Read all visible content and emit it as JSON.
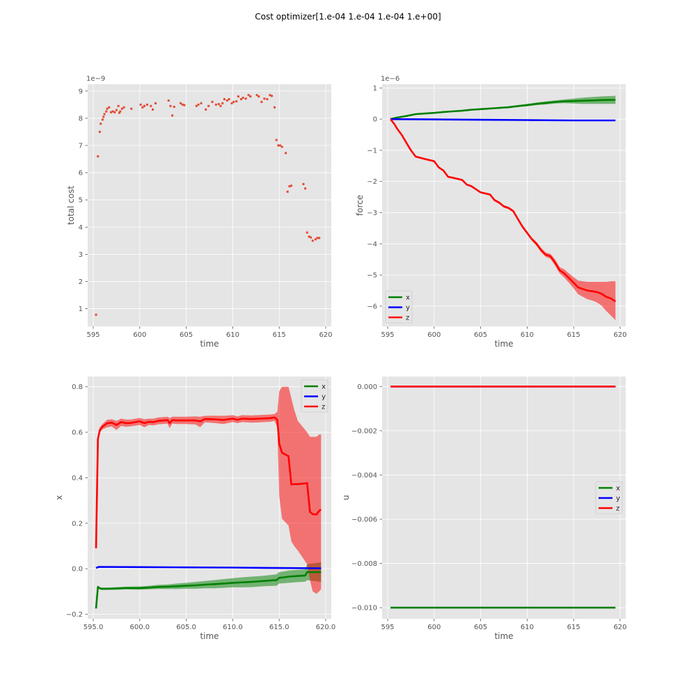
{
  "figure": {
    "title": "Cost optimizer[1.e-04 1.e-04 1.e-04 1.e+00]"
  },
  "colors": {
    "x": "#008000",
    "y": "#0000ff",
    "z": "#ff0000",
    "scatter": "#e24a33",
    "panel_bg": "#e5e5e5",
    "grid": "#ffffff"
  },
  "chart_data": [
    {
      "id": "cost",
      "type": "scatter",
      "xlabel": "time",
      "ylabel": "total cost",
      "offset_text": "1e−9",
      "xlim": [
        594.4,
        620.6
      ],
      "ylim": [
        0.35,
        9.25
      ],
      "xticks": [
        595,
        600,
        605,
        610,
        615,
        620
      ],
      "yticks": [
        1,
        2,
        3,
        4,
        5,
        6,
        7,
        8,
        9
      ],
      "grid": true,
      "x": [
        595.3,
        595.5,
        595.7,
        595.8,
        596.0,
        596.1,
        596.2,
        596.4,
        596.5,
        596.7,
        596.9,
        597.1,
        597.3,
        597.5,
        597.7,
        597.8,
        597.9,
        598.1,
        598.3,
        599.1,
        600.1,
        600.3,
        600.5,
        600.8,
        601.2,
        601.4,
        601.7,
        603.1,
        603.3,
        603.5,
        603.7,
        604.4,
        604.6,
        604.8,
        606.1,
        606.3,
        606.6,
        607.1,
        607.4,
        607.8,
        608.2,
        608.5,
        608.7,
        608.9,
        609.1,
        609.4,
        609.6,
        609.9,
        610.1,
        610.4,
        610.6,
        610.9,
        611.1,
        611.4,
        611.7,
        611.9,
        612.6,
        612.8,
        613.1,
        613.4,
        613.7,
        614.0,
        614.2,
        614.5,
        614.7,
        614.9,
        615.1,
        615.3,
        615.7,
        615.9,
        616.1,
        616.3,
        617.6,
        617.8,
        618.0,
        618.2,
        618.4,
        618.6,
        618.9,
        619.1,
        619.3
      ],
      "y": [
        0.78,
        6.6,
        7.5,
        7.8,
        7.95,
        8.05,
        8.15,
        8.25,
        8.35,
        8.4,
        8.22,
        8.25,
        8.22,
        8.3,
        8.45,
        8.2,
        8.25,
        8.35,
        8.4,
        8.35,
        8.5,
        8.4,
        8.45,
        8.5,
        8.45,
        8.32,
        8.55,
        8.65,
        8.45,
        8.1,
        8.42,
        8.55,
        8.5,
        8.48,
        8.45,
        8.5,
        8.55,
        8.32,
        8.45,
        8.6,
        8.5,
        8.52,
        8.45,
        8.55,
        8.7,
        8.65,
        8.7,
        8.55,
        8.6,
        8.62,
        8.8,
        8.7,
        8.75,
        8.72,
        8.85,
        8.8,
        8.85,
        8.8,
        8.6,
        8.72,
        8.7,
        8.85,
        8.82,
        8.4,
        7.2,
        7.0,
        7.0,
        6.95,
        6.72,
        5.3,
        5.5,
        5.52,
        5.58,
        5.42,
        3.8,
        3.65,
        3.62,
        3.5,
        3.55,
        3.6,
        3.6
      ]
    },
    {
      "id": "force",
      "type": "line",
      "xlabel": "time",
      "ylabel": "force",
      "offset_text": "1e−6",
      "xlim": [
        594.4,
        620.6
      ],
      "ylim": [
        -6.65,
        1.12
      ],
      "xticks": [
        595,
        600,
        605,
        610,
        615,
        620
      ],
      "yticks": [
        1,
        0,
        -1,
        -2,
        -3,
        -4,
        -5,
        -6
      ],
      "grid": true,
      "legend": "lower-left",
      "series": [
        {
          "name": "x",
          "color": "#008000",
          "x": [
            595.3,
            596,
            597,
            598,
            599,
            600,
            601,
            602,
            603,
            604,
            605,
            606,
            607,
            608,
            609,
            610,
            611,
            612,
            613,
            614,
            615,
            616,
            617,
            618,
            619.5
          ],
          "y": [
            0,
            0.05,
            0.1,
            0.16,
            0.18,
            0.2,
            0.23,
            0.25,
            0.27,
            0.3,
            0.32,
            0.34,
            0.36,
            0.38,
            0.42,
            0.45,
            0.49,
            0.52,
            0.55,
            0.57,
            0.58,
            0.59,
            0.6,
            0.61,
            0.62
          ],
          "upper": [
            0,
            0.06,
            0.11,
            0.17,
            0.19,
            0.21,
            0.24,
            0.27,
            0.29,
            0.32,
            0.34,
            0.36,
            0.39,
            0.41,
            0.45,
            0.49,
            0.53,
            0.57,
            0.6,
            0.63,
            0.66,
            0.69,
            0.71,
            0.73,
            0.75
          ],
          "lower": [
            0,
            0.04,
            0.09,
            0.15,
            0.17,
            0.19,
            0.22,
            0.23,
            0.25,
            0.28,
            0.3,
            0.32,
            0.33,
            0.35,
            0.39,
            0.41,
            0.45,
            0.47,
            0.5,
            0.51,
            0.5,
            0.49,
            0.49,
            0.49,
            0.49
          ]
        },
        {
          "name": "y",
          "color": "#0000ff",
          "x": [
            595.3,
            600,
            605,
            610,
            615,
            619.5
          ],
          "y": [
            0,
            -0.01,
            -0.02,
            -0.03,
            -0.04,
            -0.04
          ],
          "upper": [
            0,
            -0.005,
            -0.012,
            -0.02,
            -0.028,
            -0.03
          ],
          "lower": [
            0,
            -0.015,
            -0.028,
            -0.04,
            -0.052,
            -0.05
          ]
        },
        {
          "name": "z",
          "color": "#ff0000",
          "x": [
            595.3,
            595.7,
            596,
            596.5,
            597,
            597.5,
            598,
            599,
            600,
            600.5,
            601,
            601.5,
            602,
            603,
            603.5,
            604,
            605,
            606,
            606.5,
            607,
            607.5,
            608,
            608.5,
            609,
            609.5,
            610,
            610.5,
            611,
            611.5,
            612,
            612.5,
            613,
            613.5,
            614,
            614.5,
            615,
            615.5,
            616,
            616.5,
            617,
            617.5,
            618,
            618.5,
            619,
            619.5
          ],
          "y": [
            0,
            -0.15,
            -0.3,
            -0.5,
            -0.75,
            -1.0,
            -1.2,
            -1.28,
            -1.35,
            -1.55,
            -1.65,
            -1.85,
            -1.88,
            -1.95,
            -2.1,
            -2.15,
            -2.35,
            -2.42,
            -2.6,
            -2.68,
            -2.8,
            -2.85,
            -2.95,
            -3.2,
            -3.45,
            -3.65,
            -3.85,
            -4.0,
            -4.2,
            -4.35,
            -4.4,
            -4.6,
            -4.85,
            -4.95,
            -5.1,
            -5.25,
            -5.4,
            -5.45,
            -5.5,
            -5.52,
            -5.55,
            -5.6,
            -5.7,
            -5.75,
            -5.85
          ],
          "upper": [
            0,
            -0.13,
            -0.27,
            -0.47,
            -0.72,
            -0.97,
            -1.17,
            -1.25,
            -1.32,
            -1.52,
            -1.62,
            -1.82,
            -1.85,
            -1.92,
            -2.07,
            -2.12,
            -2.32,
            -2.39,
            -2.56,
            -2.64,
            -2.76,
            -2.81,
            -2.91,
            -3.15,
            -3.4,
            -3.6,
            -3.8,
            -3.94,
            -4.13,
            -4.28,
            -4.32,
            -4.5,
            -4.75,
            -4.82,
            -4.95,
            -5.07,
            -5.18,
            -5.2,
            -5.22,
            -5.22,
            -5.22,
            -5.22,
            -5.22,
            -5.2,
            -5.2
          ],
          "lower": [
            0,
            -0.17,
            -0.33,
            -0.53,
            -0.78,
            -1.03,
            -1.23,
            -1.31,
            -1.38,
            -1.58,
            -1.68,
            -1.88,
            -1.91,
            -1.98,
            -2.13,
            -2.18,
            -2.38,
            -2.45,
            -2.64,
            -2.72,
            -2.84,
            -2.89,
            -2.99,
            -3.25,
            -3.5,
            -3.7,
            -3.9,
            -4.06,
            -4.27,
            -4.42,
            -4.48,
            -4.7,
            -4.95,
            -5.08,
            -5.25,
            -5.43,
            -5.62,
            -5.7,
            -5.78,
            -5.82,
            -5.88,
            -5.98,
            -6.15,
            -6.3,
            -6.45
          ]
        }
      ]
    },
    {
      "id": "state",
      "type": "line",
      "xlabel": "time",
      "ylabel": "x",
      "xlim": [
        594.4,
        620.6
      ],
      "ylim": [
        -0.22,
        0.845
      ],
      "xticks": [
        595,
        600,
        605,
        610,
        615,
        620
      ],
      "yticks": [
        0.8,
        0.6,
        0.4,
        0.2,
        0.0,
        -0.2
      ],
      "grid": true,
      "legend": "upper-right",
      "series": [
        {
          "name": "x",
          "color": "#008000",
          "x": [
            595.3,
            595.5,
            595.8,
            596.5,
            597.5,
            598.5,
            600,
            601,
            602,
            603,
            604,
            605,
            606,
            607,
            608,
            609,
            610,
            611,
            612,
            613,
            614,
            614.7,
            615,
            615.5,
            616,
            617,
            617.8,
            618,
            619,
            619.5
          ],
          "y": [
            -0.175,
            -0.08,
            -0.088,
            -0.088,
            -0.087,
            -0.085,
            -0.085,
            -0.083,
            -0.08,
            -0.079,
            -0.077,
            -0.075,
            -0.073,
            -0.07,
            -0.068,
            -0.065,
            -0.062,
            -0.06,
            -0.058,
            -0.055,
            -0.052,
            -0.05,
            -0.04,
            -0.038,
            -0.035,
            -0.032,
            -0.03,
            -0.015,
            -0.015,
            -0.015
          ],
          "upper": [
            -0.175,
            -0.075,
            -0.083,
            -0.083,
            -0.081,
            -0.079,
            -0.078,
            -0.075,
            -0.071,
            -0.069,
            -0.065,
            -0.062,
            -0.058,
            -0.054,
            -0.05,
            -0.046,
            -0.042,
            -0.038,
            -0.035,
            -0.032,
            -0.028,
            -0.025,
            -0.015,
            -0.012,
            -0.008,
            -0.005,
            -0.003,
            0.02,
            0.025,
            0.028
          ],
          "lower": [
            -0.175,
            -0.085,
            -0.093,
            -0.093,
            -0.093,
            -0.091,
            -0.092,
            -0.091,
            -0.089,
            -0.089,
            -0.089,
            -0.088,
            -0.088,
            -0.086,
            -0.086,
            -0.084,
            -0.082,
            -0.082,
            -0.081,
            -0.078,
            -0.076,
            -0.075,
            -0.065,
            -0.064,
            -0.062,
            -0.059,
            -0.057,
            -0.05,
            -0.055,
            -0.058
          ]
        },
        {
          "name": "y",
          "color": "#0000ff",
          "x": [
            595.3,
            595.6,
            600,
            605,
            610,
            615,
            619.5
          ],
          "y": [
            0.003,
            0.008,
            0.007,
            0.006,
            0.005,
            0.003,
            0.002
          ],
          "upper": [
            0.003,
            0.009,
            0.008,
            0.007,
            0.006,
            0.004,
            0.004
          ],
          "lower": [
            0.003,
            0.007,
            0.006,
            0.005,
            0.004,
            0.002,
            0.0
          ]
        },
        {
          "name": "z",
          "color": "#ff0000",
          "x": [
            595.3,
            595.5,
            595.7,
            596.0,
            596.5,
            597.0,
            597.5,
            598.0,
            598.5,
            599.0,
            600.0,
            600.5,
            601.0,
            601.5,
            602.0,
            603.0,
            603.2,
            603.5,
            604.0,
            605.0,
            606.0,
            606.5,
            607.0,
            608.0,
            609.0,
            610.0,
            610.5,
            611.0,
            612.0,
            613.0,
            614.0,
            614.5,
            614.8,
            615.0,
            615.3,
            616.0,
            616.3,
            616.6,
            617.0,
            618.0,
            618.3,
            618.6,
            619.0,
            619.3,
            619.5
          ],
          "y": [
            0.09,
            0.57,
            0.61,
            0.625,
            0.64,
            0.642,
            0.632,
            0.645,
            0.64,
            0.641,
            0.648,
            0.64,
            0.646,
            0.645,
            0.65,
            0.653,
            0.64,
            0.653,
            0.652,
            0.652,
            0.652,
            0.648,
            0.658,
            0.657,
            0.654,
            0.66,
            0.655,
            0.66,
            0.658,
            0.66,
            0.662,
            0.665,
            0.655,
            0.55,
            0.51,
            0.495,
            0.37,
            0.372,
            0.372,
            0.376,
            0.25,
            0.24,
            0.238,
            0.255,
            0.26
          ],
          "upper": [
            0.09,
            0.58,
            0.622,
            0.637,
            0.655,
            0.657,
            0.65,
            0.66,
            0.656,
            0.656,
            0.663,
            0.657,
            0.66,
            0.66,
            0.665,
            0.668,
            0.662,
            0.668,
            0.668,
            0.668,
            0.67,
            0.668,
            0.672,
            0.673,
            0.672,
            0.675,
            0.67,
            0.675,
            0.674,
            0.676,
            0.678,
            0.68,
            0.69,
            0.78,
            0.8,
            0.8,
            0.75,
            0.7,
            0.65,
            0.6,
            0.58,
            0.58,
            0.58,
            0.59,
            0.59
          ],
          "lower": [
            0.09,
            0.56,
            0.598,
            0.613,
            0.622,
            0.625,
            0.61,
            0.628,
            0.624,
            0.626,
            0.632,
            0.622,
            0.632,
            0.63,
            0.635,
            0.638,
            0.618,
            0.638,
            0.636,
            0.636,
            0.634,
            0.622,
            0.644,
            0.641,
            0.636,
            0.645,
            0.64,
            0.645,
            0.642,
            0.644,
            0.646,
            0.65,
            0.62,
            0.32,
            0.22,
            0.19,
            0.12,
            0.1,
            0.08,
            0.02,
            -0.05,
            -0.1,
            -0.11,
            -0.1,
            -0.09
          ]
        }
      ]
    },
    {
      "id": "control",
      "type": "line",
      "xlabel": "time",
      "ylabel": "u",
      "xlim": [
        594.4,
        620.6
      ],
      "ylim": [
        -0.0105,
        0.00045
      ],
      "xticks": [
        595,
        600,
        605,
        610,
        615,
        620
      ],
      "yticks": [
        0.0,
        -0.002,
        -0.004,
        -0.006,
        -0.008,
        -0.01
      ],
      "ytick_labels": [
        "0.000",
        "−0.002",
        "−0.004",
        "−0.006",
        "−0.008",
        "−0.010"
      ],
      "grid": true,
      "legend": "center-right",
      "series": [
        {
          "name": "x",
          "color": "#008000",
          "x": [
            595.3,
            619.5
          ],
          "y": [
            -0.01,
            -0.01
          ]
        },
        {
          "name": "y",
          "color": "#0000ff",
          "x": [
            595.3,
            619.5
          ],
          "y": [
            0.0,
            0.0
          ]
        },
        {
          "name": "z",
          "color": "#ff0000",
          "x": [
            595.3,
            619.5
          ],
          "y": [
            0.0,
            0.0
          ]
        }
      ]
    }
  ]
}
